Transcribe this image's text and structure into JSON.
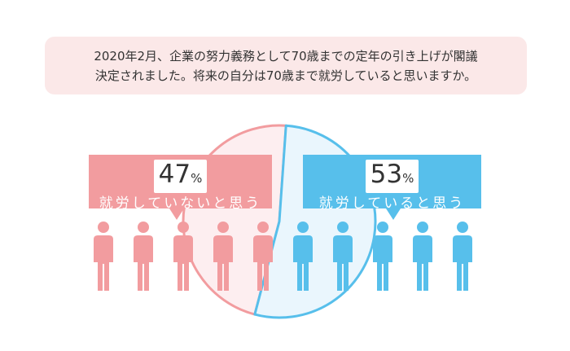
{
  "question": {
    "line1": "2020年2月、企業の努力義務として70歳までの定年の引き上げが閣議",
    "line2": "決定されました。将来の自分は70歳まで就労していると思いますか。"
  },
  "colors": {
    "no": "#f29c9f",
    "no_light": "#fdeef0",
    "yes": "#57bfeb",
    "yes_light": "#eaf6fd"
  },
  "chart_data": {
    "type": "pie",
    "categories": [
      "就労していないと思う",
      "就労していると思う"
    ],
    "values": [
      47,
      53
    ],
    "unit": "%"
  },
  "bubbles": {
    "no": {
      "value": "47",
      "unit": "%",
      "label": "就労していないと思う"
    },
    "yes": {
      "value": "53",
      "unit": "%",
      "label": "就労していると思う"
    }
  },
  "people": {
    "no_count": 5,
    "yes_count": 5
  }
}
